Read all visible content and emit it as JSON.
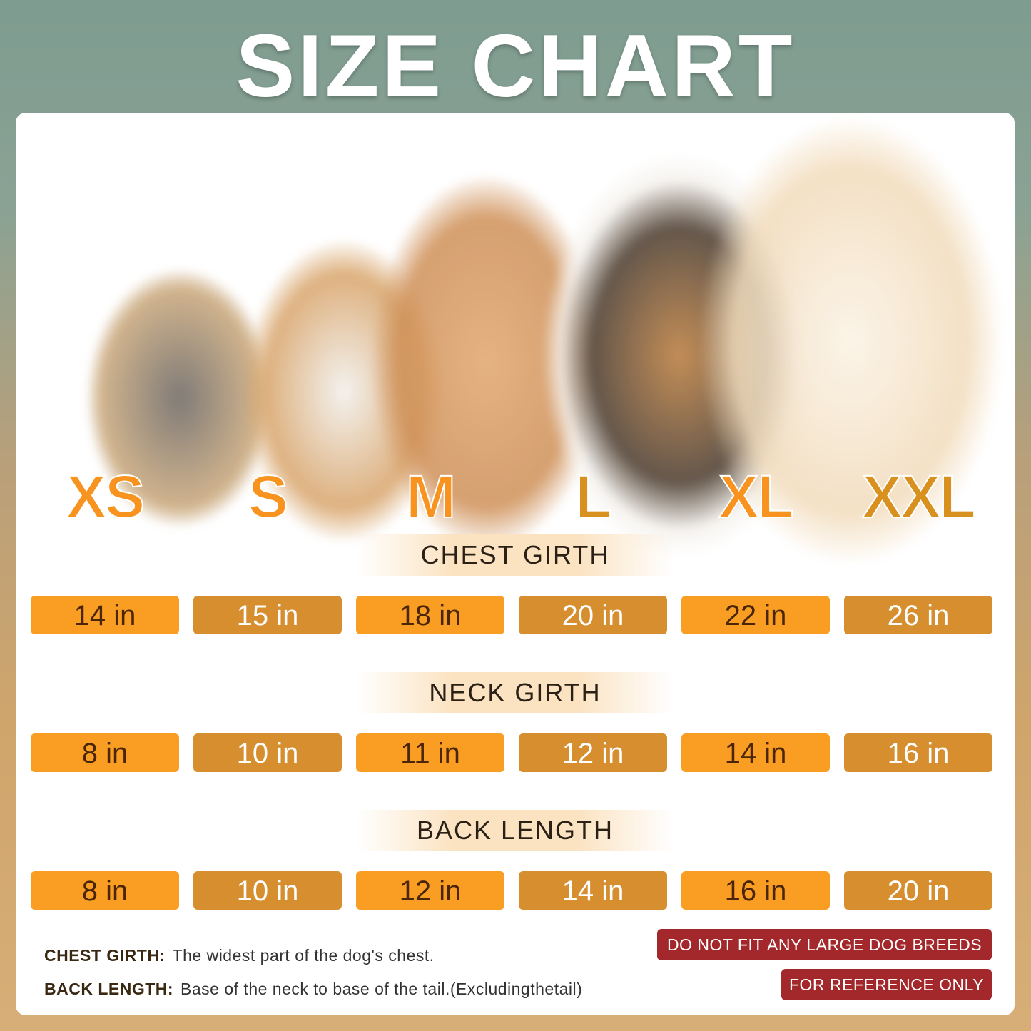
{
  "title": "SIZE CHART",
  "sizes": [
    "XS",
    "S",
    "M",
    "L",
    "XL",
    "XXL"
  ],
  "sections": [
    {
      "label": "CHEST GIRTH",
      "values": [
        "14 in",
        "15 in",
        "18 in",
        "20 in",
        "22 in",
        "26 in"
      ]
    },
    {
      "label": "NECK GIRTH",
      "values": [
        "8 in",
        "10 in",
        "11 in",
        "12 in",
        "14 in",
        "16 in"
      ]
    },
    {
      "label": "BACK LENGTH",
      "values": [
        "8 in",
        "10 in",
        "12 in",
        "14 in",
        "16 in",
        "20 in"
      ]
    }
  ],
  "notes": [
    {
      "term": "CHEST GIRTH:",
      "desc": "The widest part of the dog's chest."
    },
    {
      "term": "BACK LENGTH:",
      "desc": "Base of the neck to base of the tail.(Excludingthetail)"
    }
  ],
  "warnings": [
    "DO NOT FIT ANY LARGE DOG BREEDS",
    "FOR REFERENCE ONLY"
  ],
  "colors": {
    "orange": "#f99e22",
    "brown": "#d68e2f",
    "warning": "#a3282b"
  }
}
